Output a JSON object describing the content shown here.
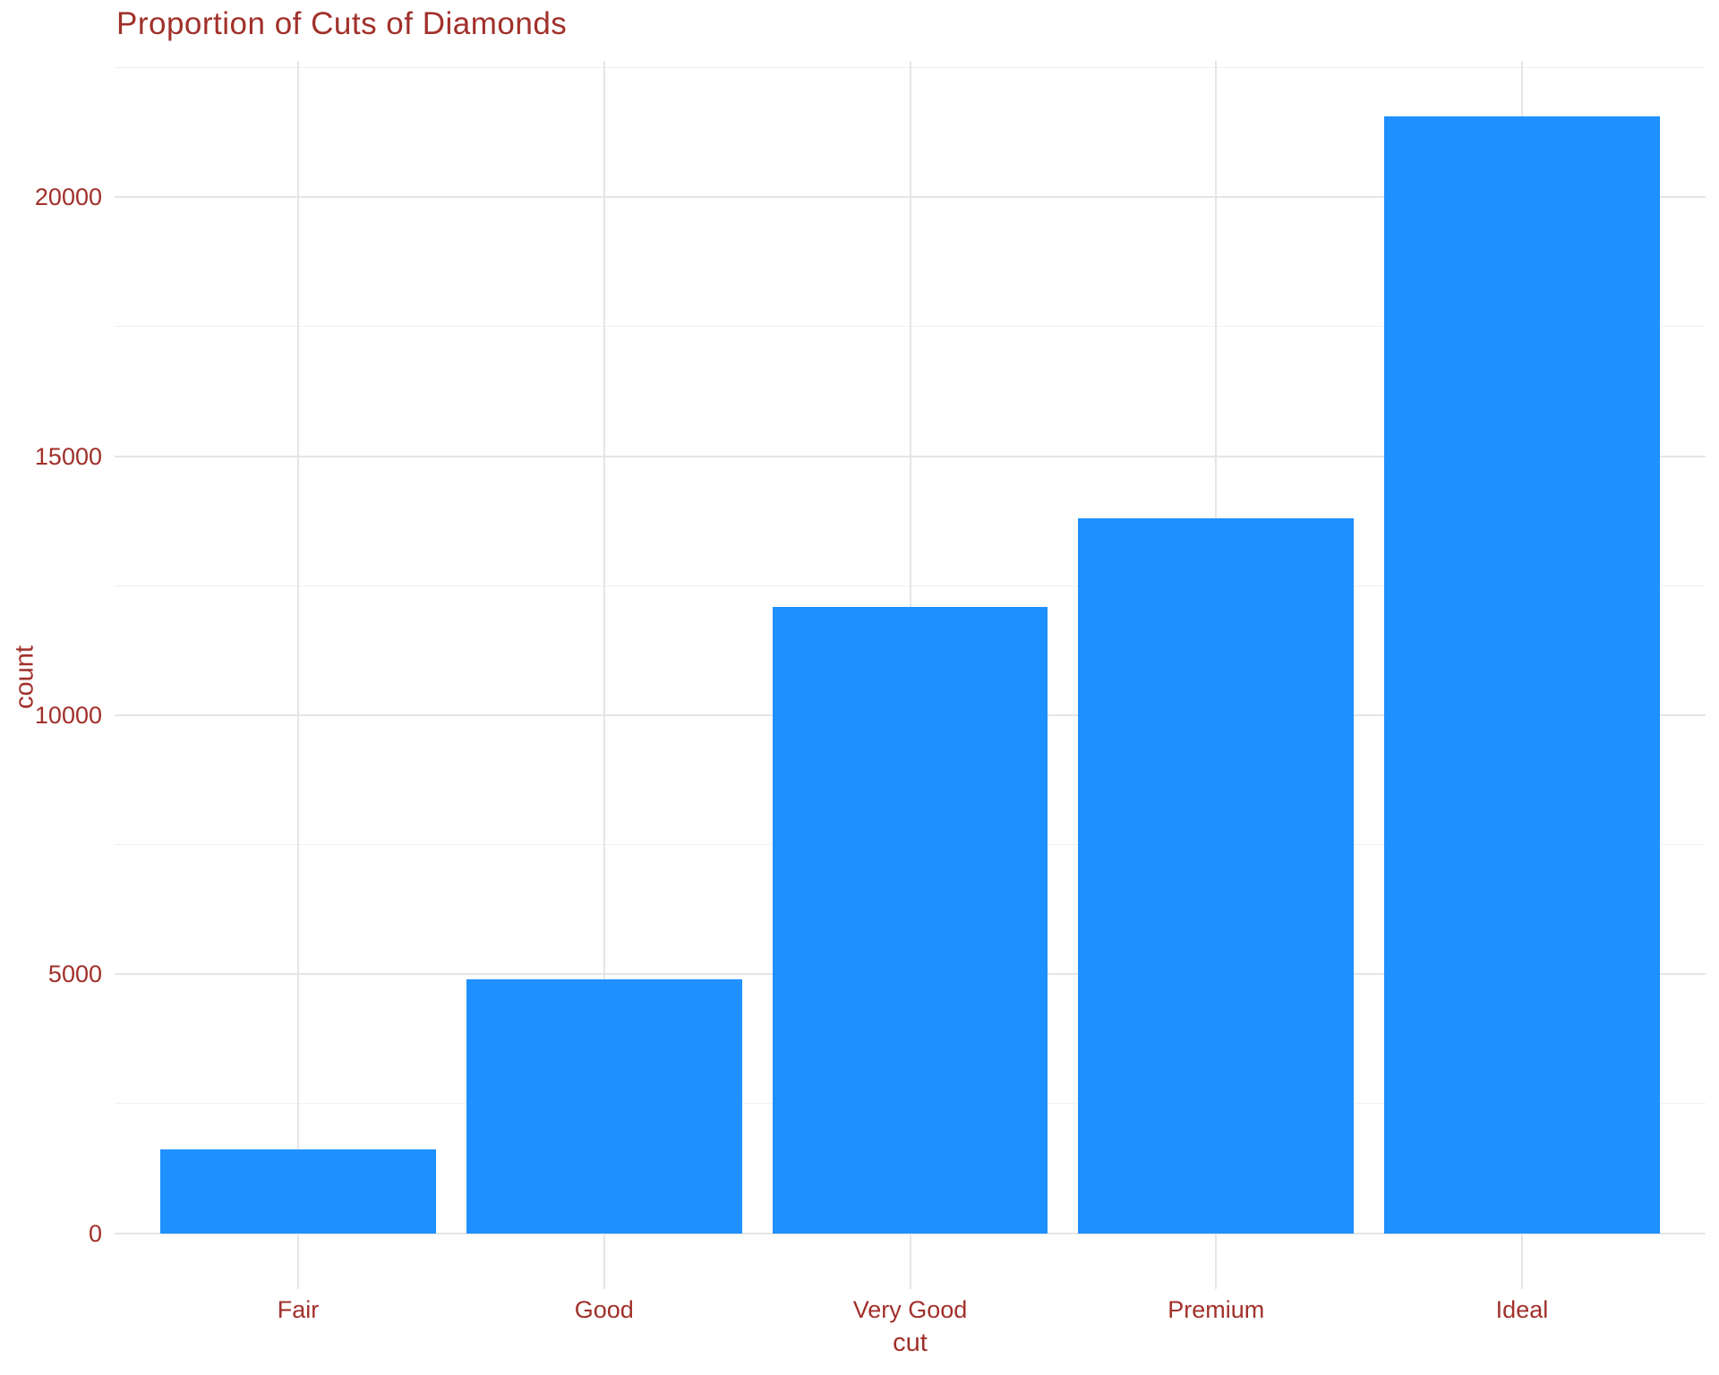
{
  "chart_data": {
    "type": "bar",
    "title": "Proportion of Cuts of Diamonds",
    "xlabel": "cut",
    "ylabel": "count",
    "categories": [
      "Fair",
      "Good",
      "Very Good",
      "Premium",
      "Ideal"
    ],
    "values": [
      1610,
      4906,
      12082,
      13791,
      21551
    ],
    "ylim": [
      -1078,
      22629
    ],
    "yticks": [
      0,
      5000,
      10000,
      15000,
      20000
    ],
    "ytick_labels": [
      "0",
      "5000",
      "10000",
      "15000",
      "20000"
    ],
    "yticks_minor": [
      2500,
      7500,
      12500,
      17500,
      22500
    ],
    "grid": "horizontal major+minor lines, vertical major line at each category; no axis lines, no tick marks",
    "legend": "none",
    "bar_color": "#1E90FF",
    "text_color": "#A1302A",
    "grid_major_color": "#E5E5E5",
    "grid_minor_color": "#F0F0F0",
    "background_color": "#FFFFFF"
  }
}
